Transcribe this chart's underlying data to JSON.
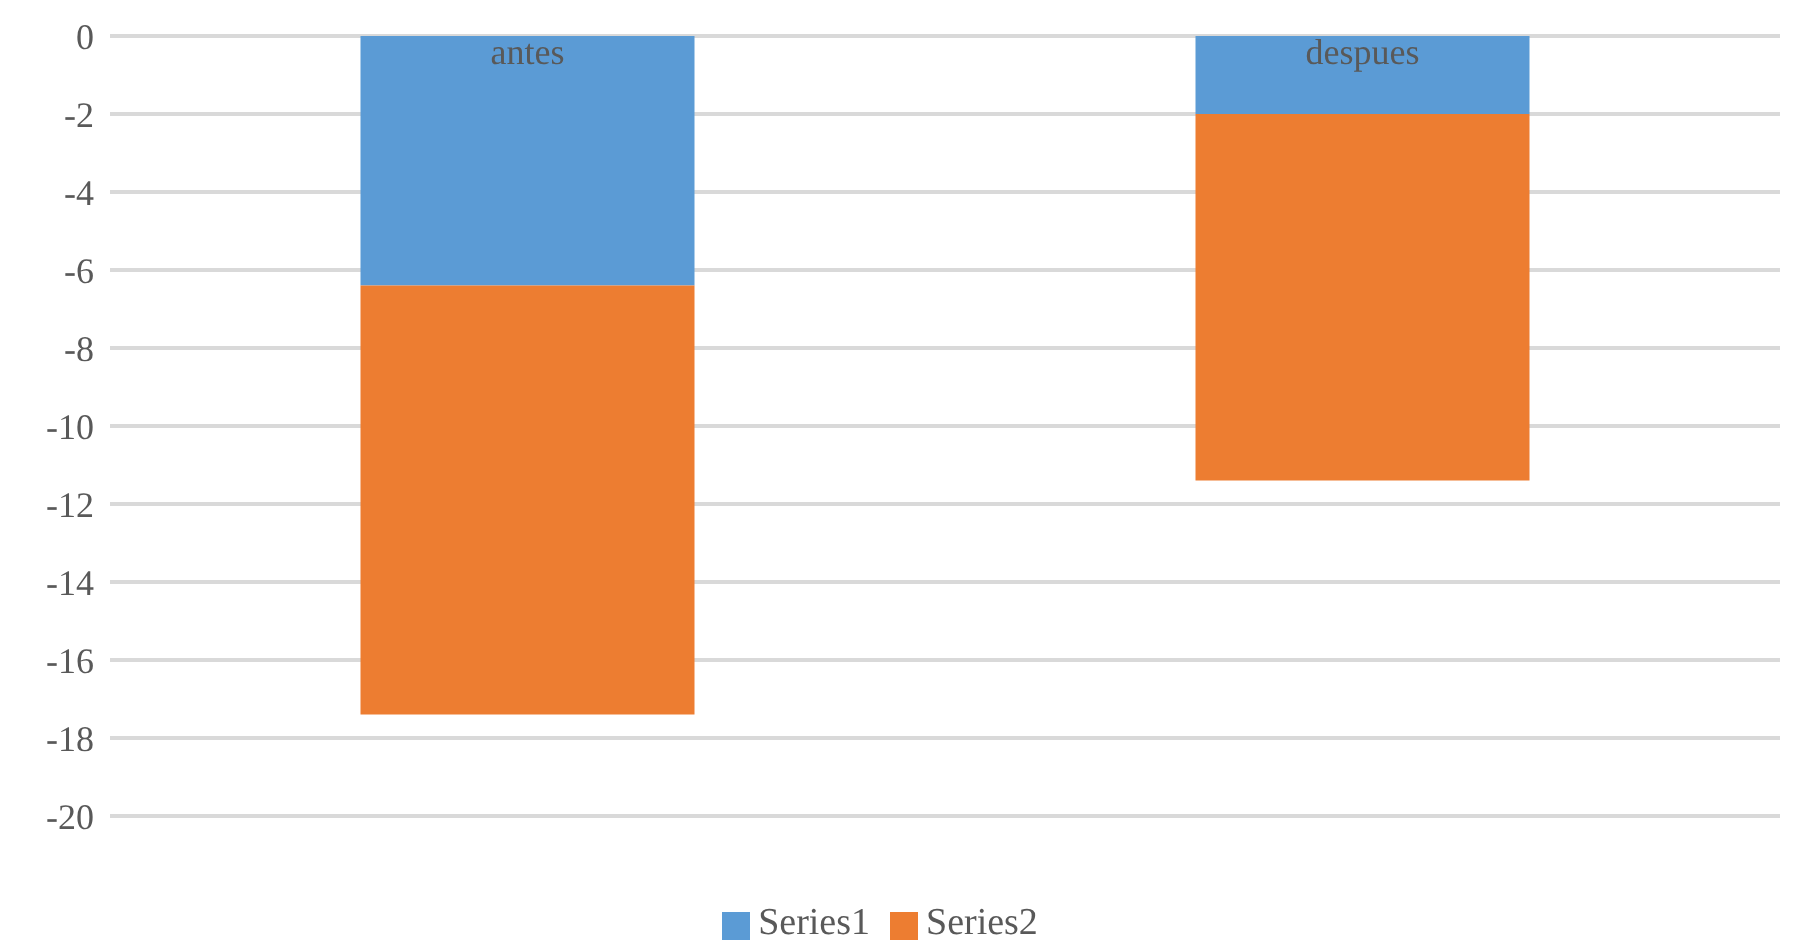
{
  "chart_data": {
    "type": "bar",
    "stacked": true,
    "categories": [
      "antes",
      "despues"
    ],
    "series": [
      {
        "name": "Series1",
        "color": "#5b9bd5",
        "values": [
          -6.4,
          -2
        ]
      },
      {
        "name": "Series2",
        "color": "#ed7d31",
        "values": [
          -11,
          -9.4
        ]
      }
    ],
    "ylim": [
      -20,
      0
    ],
    "yticks": [
      0,
      -2,
      -4,
      -6,
      -8,
      -10,
      -12,
      -14,
      -16,
      -18,
      -20
    ],
    "grid": "y",
    "legend": "bottom"
  }
}
